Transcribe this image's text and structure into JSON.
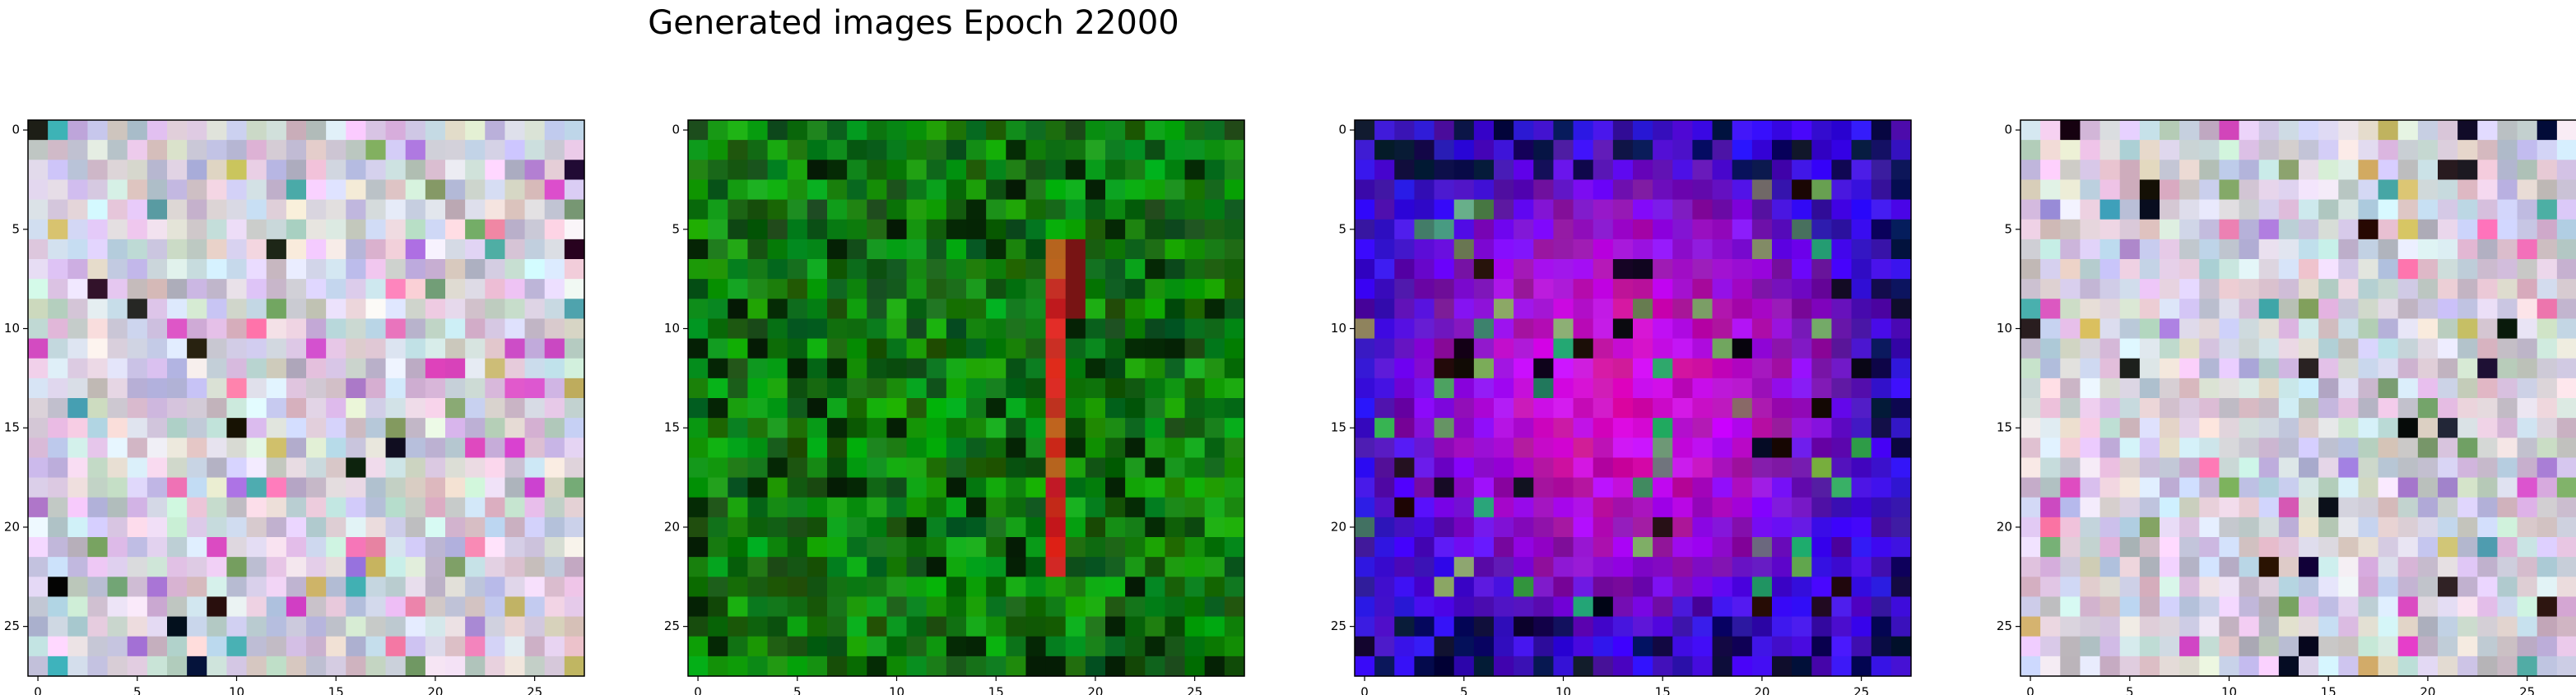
{
  "figure": {
    "title": "Generated images Epoch 22000"
  },
  "chart_data": [
    {
      "type": "heatmap",
      "palette": "pastel-noise",
      "rows": 28,
      "cols": 28,
      "xticks": [
        "0",
        "5",
        "10",
        "15",
        "20",
        "25"
      ],
      "yticks": [
        "0",
        "5",
        "10",
        "15",
        "20",
        "25"
      ],
      "xlim": [
        -0.5,
        27.5
      ],
      "ylim": [
        27.5,
        -0.5
      ],
      "dominant_color": "#d8c8d8"
    },
    {
      "type": "heatmap",
      "palette": "green",
      "rows": 28,
      "cols": 28,
      "xticks": [
        "0",
        "5",
        "10",
        "15",
        "20",
        "25"
      ],
      "yticks": [
        "0",
        "5",
        "10",
        "15",
        "20",
        "25"
      ],
      "xlim": [
        -0.5,
        27.5
      ],
      "ylim": [
        27.5,
        -0.5
      ],
      "dominant_color": "#0a6e0a",
      "accent_color": "#c81e1e"
    },
    {
      "type": "heatmap",
      "palette": "blue-violet",
      "rows": 28,
      "cols": 28,
      "xticks": [
        "0",
        "5",
        "10",
        "15",
        "20",
        "25"
      ],
      "yticks": [
        "0",
        "5",
        "10",
        "15",
        "20",
        "25"
      ],
      "xlim": [
        -0.5,
        27.5
      ],
      "ylim": [
        27.5,
        -0.5
      ],
      "dominant_color": "#2a10d0",
      "accent_color": "#9a2cff"
    },
    {
      "type": "heatmap",
      "palette": "pastel-noise-sparse",
      "rows": 28,
      "cols": 28,
      "xticks": [
        "0",
        "5",
        "10",
        "15",
        "20",
        "25"
      ],
      "yticks": [
        "0",
        "5",
        "10",
        "15",
        "20",
        "25"
      ],
      "xlim": [
        -0.5,
        27.5
      ],
      "ylim": [
        27.5,
        -0.5
      ],
      "dominant_color": "#d6ccd6"
    }
  ]
}
